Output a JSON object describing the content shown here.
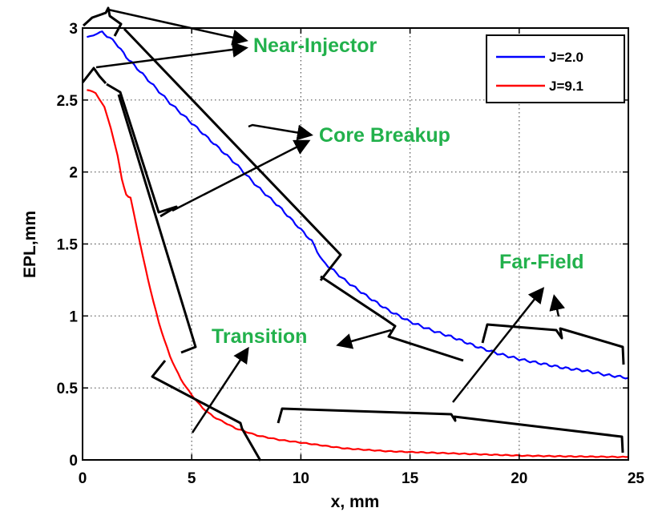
{
  "chart_data": {
    "type": "line",
    "xlabel": "x, mm",
    "ylabel": "EPL,mm",
    "xlim": [
      0,
      25
    ],
    "ylim": [
      0,
      3
    ],
    "grid": true,
    "legend_placement": "top-right",
    "x_ticks": [
      0,
      5,
      10,
      15,
      20,
      25
    ],
    "y_ticks": [
      0,
      0.5,
      1,
      1.5,
      2,
      2.5,
      3
    ],
    "x_tick_labels": [
      "0",
      "5",
      "10",
      "15",
      "20",
      "25"
    ],
    "y_tick_labels": [
      "0",
      "0.5",
      "1",
      "1.5",
      "2",
      "2.5",
      "3"
    ],
    "series": [
      {
        "name": "J=2.0",
        "color": "#0000ff",
        "x": [
          0.2,
          0.5,
          0.8,
          1.0,
          1.5,
          2,
          2.5,
          3,
          4,
          5,
          6,
          7,
          8,
          9,
          10,
          10.5,
          11,
          12,
          13,
          14,
          15,
          16,
          17,
          18,
          19,
          20,
          21,
          22,
          23,
          24,
          25
        ],
        "y": [
          2.93,
          2.95,
          2.98,
          2.96,
          2.9,
          2.8,
          2.72,
          2.64,
          2.48,
          2.34,
          2.2,
          2.06,
          1.9,
          1.76,
          1.6,
          1.52,
          1.38,
          1.25,
          1.14,
          1.04,
          0.96,
          0.9,
          0.85,
          0.79,
          0.74,
          0.7,
          0.67,
          0.64,
          0.62,
          0.59,
          0.57
        ]
      },
      {
        "name": "J=9.1",
        "color": "#ff0000",
        "x": [
          0.2,
          0.6,
          1.0,
          1.3,
          1.6,
          1.8,
          2.0,
          2.2,
          2.5,
          3,
          3.5,
          4,
          4.5,
          5,
          5.5,
          6,
          7,
          8,
          9,
          10,
          11,
          12,
          14,
          16,
          18,
          20,
          22,
          25
        ],
        "y": [
          2.57,
          2.55,
          2.45,
          2.3,
          2.12,
          1.95,
          1.84,
          1.82,
          1.6,
          1.25,
          0.95,
          0.72,
          0.56,
          0.45,
          0.36,
          0.3,
          0.22,
          0.17,
          0.14,
          0.12,
          0.1,
          0.08,
          0.06,
          0.05,
          0.04,
          0.03,
          0.025,
          0.02
        ]
      }
    ],
    "annotations": [
      {
        "text": "Near-Injector",
        "color": "#22b14c"
      },
      {
        "text": "Core Breakup",
        "color": "#22b14c"
      },
      {
        "text": "Far-Field",
        "color": "#22b14c"
      },
      {
        "text": "Transition",
        "color": "#22b14c"
      }
    ]
  }
}
